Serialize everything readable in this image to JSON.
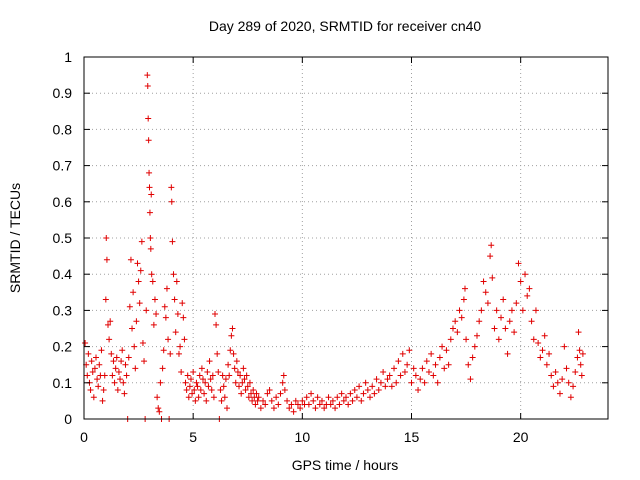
{
  "chart_data": {
    "type": "scatter",
    "title": "Day 289 of 2020, SRMTID for receiver cn40",
    "xlabel": "GPS time / hours",
    "ylabel": "SRMTID / TECUs",
    "xlim": [
      0,
      24
    ],
    "ylim": [
      0,
      1
    ],
    "grid": true,
    "x_ticks": [
      "0",
      "5",
      "10",
      "15",
      "20"
    ],
    "y_ticks": [
      "0",
      "0.1",
      "0.2",
      "0.3",
      "0.4",
      "0.5",
      "0.6",
      "0.7",
      "0.8",
      "0.9",
      "1"
    ],
    "marker": "+",
    "series": [
      {
        "name": "SRMTID",
        "color": "#e00000",
        "points": [
          [
            0.05,
            0.21
          ],
          [
            0.1,
            0.15
          ],
          [
            0.15,
            0.12
          ],
          [
            0.2,
            0.18
          ],
          [
            0.25,
            0.1
          ],
          [
            0.3,
            0.08
          ],
          [
            0.35,
            0.16
          ],
          [
            0.4,
            0.13
          ],
          [
            0.45,
            0.06
          ],
          [
            0.5,
            0.14
          ],
          [
            0.55,
            0.17
          ],
          [
            0.6,
            0.11
          ],
          [
            0.65,
            0.09
          ],
          [
            0.7,
            0.15
          ],
          [
            0.75,
            0.12
          ],
          [
            0.8,
            0.19
          ],
          [
            0.85,
            0.05
          ],
          [
            0.9,
            0.08
          ],
          [
            0.95,
            0.12
          ],
          [
            1.0,
            0.33
          ],
          [
            1.02,
            0.5
          ],
          [
            1.05,
            0.44
          ],
          [
            1.1,
            0.26
          ],
          [
            1.15,
            0.22
          ],
          [
            1.2,
            0.27
          ],
          [
            1.25,
            0.18
          ],
          [
            1.3,
            0.12
          ],
          [
            1.35,
            0.16
          ],
          [
            1.4,
            0.1
          ],
          [
            1.45,
            0.14
          ],
          [
            1.5,
            0.17
          ],
          [
            1.55,
            0.08
          ],
          [
            1.6,
            0.13
          ],
          [
            1.65,
            0.11
          ],
          [
            1.7,
            0.16
          ],
          [
            1.75,
            0.19
          ],
          [
            1.8,
            0.1
          ],
          [
            1.85,
            0.07
          ],
          [
            1.9,
            0.15
          ],
          [
            1.95,
            0.12
          ],
          [
            2.0,
            0.0
          ],
          [
            2.05,
            0.17
          ],
          [
            2.1,
            0.31
          ],
          [
            2.15,
            0.44
          ],
          [
            2.2,
            0.25
          ],
          [
            2.25,
            0.35
          ],
          [
            2.3,
            0.2
          ],
          [
            2.35,
            0.14
          ],
          [
            2.4,
            0.27
          ],
          [
            2.45,
            0.43
          ],
          [
            2.5,
            0.38
          ],
          [
            2.55,
            0.32
          ],
          [
            2.6,
            0.41
          ],
          [
            2.65,
            0.49
          ],
          [
            2.7,
            0.21
          ],
          [
            2.75,
            0.16
          ],
          [
            2.8,
            0.0
          ],
          [
            2.85,
            0.3
          ],
          [
            2.9,
            0.95
          ],
          [
            2.92,
            0.92
          ],
          [
            2.94,
            0.83
          ],
          [
            2.96,
            0.77
          ],
          [
            2.98,
            0.68
          ],
          [
            3.0,
            0.64
          ],
          [
            3.02,
            0.57
          ],
          [
            3.04,
            0.5
          ],
          [
            3.06,
            0.47
          ],
          [
            3.08,
            0.62
          ],
          [
            3.1,
            0.4
          ],
          [
            3.15,
            0.38
          ],
          [
            3.2,
            0.26
          ],
          [
            3.25,
            0.33
          ],
          [
            3.3,
            0.29
          ],
          [
            3.35,
            0.06
          ],
          [
            3.4,
            0.03
          ],
          [
            3.45,
            0.02
          ],
          [
            3.5,
            0.1
          ],
          [
            3.55,
            0.0
          ],
          [
            3.6,
            0.14
          ],
          [
            3.65,
            0.19
          ],
          [
            3.7,
            0.31
          ],
          [
            3.75,
            0.28
          ],
          [
            3.8,
            0.36
          ],
          [
            3.85,
            0.22
          ],
          [
            3.9,
            0.0
          ],
          [
            3.95,
            0.18
          ],
          [
            4.0,
            0.64
          ],
          [
            4.02,
            0.6
          ],
          [
            4.05,
            0.49
          ],
          [
            4.1,
            0.4
          ],
          [
            4.15,
            0.33
          ],
          [
            4.2,
            0.24
          ],
          [
            4.25,
            0.38
          ],
          [
            4.3,
            0.29
          ],
          [
            4.35,
            0.18
          ],
          [
            4.4,
            0.2
          ],
          [
            4.45,
            0.13
          ],
          [
            4.5,
            0.32
          ],
          [
            4.55,
            0.28
          ],
          [
            4.6,
            0.22
          ],
          [
            4.65,
            0.1
          ],
          [
            4.7,
            0.08
          ],
          [
            4.75,
            0.12
          ],
          [
            4.8,
            0.06
          ],
          [
            4.85,
            0.09
          ],
          [
            4.9,
            0.11
          ],
          [
            4.95,
            0.07
          ],
          [
            5.0,
            0.13
          ],
          [
            5.05,
            0.08
          ],
          [
            5.1,
            0.05
          ],
          [
            5.15,
            0.1
          ],
          [
            5.2,
            0.09
          ],
          [
            5.25,
            0.06
          ],
          [
            5.3,
            0.12
          ],
          [
            5.35,
            0.08
          ],
          [
            5.4,
            0.14
          ],
          [
            5.45,
            0.11
          ],
          [
            5.5,
            0.07
          ],
          [
            5.55,
            0.1
          ],
          [
            5.6,
            0.05
          ],
          [
            5.65,
            0.13
          ],
          [
            5.7,
            0.09
          ],
          [
            5.75,
            0.16
          ],
          [
            5.8,
            0.11
          ],
          [
            5.85,
            0.08
          ],
          [
            5.9,
            0.12
          ],
          [
            5.95,
            0.06
          ],
          [
            6.0,
            0.29
          ],
          [
            6.05,
            0.26
          ],
          [
            6.1,
            0.18
          ],
          [
            6.15,
            0.13
          ],
          [
            6.2,
            0.0
          ],
          [
            6.25,
            0.08
          ],
          [
            6.3,
            0.05
          ],
          [
            6.35,
            0.12
          ],
          [
            6.4,
            0.09
          ],
          [
            6.45,
            0.06
          ],
          [
            6.5,
            0.11
          ],
          [
            6.55,
            0.03
          ],
          [
            6.6,
            0.15
          ],
          [
            6.65,
            0.12
          ],
          [
            6.7,
            0.19
          ],
          [
            6.75,
            0.23
          ],
          [
            6.8,
            0.25
          ],
          [
            6.85,
            0.18
          ],
          [
            6.9,
            0.14
          ],
          [
            6.95,
            0.1
          ],
          [
            7.0,
            0.16
          ],
          [
            7.05,
            0.13
          ],
          [
            7.1,
            0.09
          ],
          [
            7.15,
            0.12
          ],
          [
            7.2,
            0.07
          ],
          [
            7.25,
            0.1
          ],
          [
            7.3,
            0.14
          ],
          [
            7.35,
            0.11
          ],
          [
            7.4,
            0.08
          ],
          [
            7.45,
            0.12
          ],
          [
            7.5,
            0.09
          ],
          [
            7.55,
            0.06
          ],
          [
            7.6,
            0.1
          ],
          [
            7.65,
            0.07
          ],
          [
            7.7,
            0.05
          ],
          [
            7.75,
            0.08
          ],
          [
            7.8,
            0.06
          ],
          [
            7.85,
            0.04
          ],
          [
            7.9,
            0.07
          ],
          [
            7.95,
            0.05
          ],
          [
            8.0,
            0.06
          ],
          [
            8.1,
            0.03
          ],
          [
            8.2,
            0.05
          ],
          [
            8.3,
            0.04
          ],
          [
            8.4,
            0.07
          ],
          [
            8.5,
            0.08
          ],
          [
            8.6,
            0.05
          ],
          [
            8.7,
            0.03
          ],
          [
            8.8,
            0.06
          ],
          [
            8.9,
            0.04
          ],
          [
            9.0,
            0.07
          ],
          [
            9.1,
            0.1
          ],
          [
            9.15,
            0.12
          ],
          [
            9.2,
            0.08
          ],
          [
            9.3,
            0.05
          ],
          [
            9.4,
            0.03
          ],
          [
            9.5,
            0.04
          ],
          [
            9.6,
            0.02
          ],
          [
            9.7,
            0.05
          ],
          [
            9.8,
            0.04
          ],
          [
            9.9,
            0.03
          ],
          [
            10.0,
            0.05
          ],
          [
            10.1,
            0.04
          ],
          [
            10.2,
            0.06
          ],
          [
            10.3,
            0.04
          ],
          [
            10.4,
            0.07
          ],
          [
            10.5,
            0.05
          ],
          [
            10.6,
            0.03
          ],
          [
            10.7,
            0.06
          ],
          [
            10.8,
            0.04
          ],
          [
            10.9,
            0.05
          ],
          [
            11.0,
            0.03
          ],
          [
            11.1,
            0.04
          ],
          [
            11.2,
            0.06
          ],
          [
            11.3,
            0.04
          ],
          [
            11.4,
            0.05
          ],
          [
            11.5,
            0.03
          ],
          [
            11.6,
            0.06
          ],
          [
            11.7,
            0.04
          ],
          [
            11.8,
            0.07
          ],
          [
            11.9,
            0.05
          ],
          [
            12.0,
            0.06
          ],
          [
            12.1,
            0.04
          ],
          [
            12.2,
            0.07
          ],
          [
            12.3,
            0.05
          ],
          [
            12.4,
            0.08
          ],
          [
            12.5,
            0.06
          ],
          [
            12.6,
            0.09
          ],
          [
            12.7,
            0.05
          ],
          [
            12.8,
            0.07
          ],
          [
            12.9,
            0.1
          ],
          [
            13.0,
            0.08
          ],
          [
            13.1,
            0.06
          ],
          [
            13.2,
            0.09
          ],
          [
            13.3,
            0.07
          ],
          [
            13.4,
            0.11
          ],
          [
            13.5,
            0.08
          ],
          [
            13.6,
            0.1
          ],
          [
            13.7,
            0.13
          ],
          [
            13.8,
            0.09
          ],
          [
            13.9,
            0.11
          ],
          [
            14.0,
            0.12
          ],
          [
            14.1,
            0.09
          ],
          [
            14.2,
            0.14
          ],
          [
            14.3,
            0.1
          ],
          [
            14.4,
            0.16
          ],
          [
            14.5,
            0.12
          ],
          [
            14.6,
            0.18
          ],
          [
            14.7,
            0.13
          ],
          [
            14.8,
            0.15
          ],
          [
            14.9,
            0.19
          ],
          [
            15.0,
            0.1
          ],
          [
            15.1,
            0.14
          ],
          [
            15.2,
            0.12
          ],
          [
            15.3,
            0.08
          ],
          [
            15.4,
            0.11
          ],
          [
            15.5,
            0.14
          ],
          [
            15.6,
            0.1
          ],
          [
            15.7,
            0.16
          ],
          [
            15.8,
            0.13
          ],
          [
            15.9,
            0.18
          ],
          [
            16.0,
            0.12
          ],
          [
            16.1,
            0.15
          ],
          [
            16.2,
            0.1
          ],
          [
            16.3,
            0.17
          ],
          [
            16.4,
            0.2
          ],
          [
            16.5,
            0.14
          ],
          [
            16.6,
            0.19
          ],
          [
            16.7,
            0.15
          ],
          [
            16.8,
            0.22
          ],
          [
            16.9,
            0.25
          ],
          [
            17.0,
            0.27
          ],
          [
            17.1,
            0.24
          ],
          [
            17.2,
            0.3
          ],
          [
            17.3,
            0.28
          ],
          [
            17.4,
            0.33
          ],
          [
            17.45,
            0.36
          ],
          [
            17.5,
            0.22
          ],
          [
            17.6,
            0.15
          ],
          [
            17.7,
            0.11
          ],
          [
            17.8,
            0.17
          ],
          [
            17.9,
            0.2
          ],
          [
            18.0,
            0.23
          ],
          [
            18.1,
            0.27
          ],
          [
            18.2,
            0.3
          ],
          [
            18.3,
            0.38
          ],
          [
            18.4,
            0.35
          ],
          [
            18.5,
            0.32
          ],
          [
            18.6,
            0.45
          ],
          [
            18.65,
            0.48
          ],
          [
            18.7,
            0.39
          ],
          [
            18.8,
            0.25
          ],
          [
            18.9,
            0.3
          ],
          [
            19.0,
            0.22
          ],
          [
            19.1,
            0.28
          ],
          [
            19.2,
            0.33
          ],
          [
            19.3,
            0.25
          ],
          [
            19.4,
            0.18
          ],
          [
            19.5,
            0.27
          ],
          [
            19.6,
            0.3
          ],
          [
            19.7,
            0.24
          ],
          [
            19.8,
            0.32
          ],
          [
            19.9,
            0.43
          ],
          [
            20.0,
            0.38
          ],
          [
            20.1,
            0.3
          ],
          [
            20.2,
            0.4
          ],
          [
            20.3,
            0.34
          ],
          [
            20.4,
            0.36
          ],
          [
            20.5,
            0.27
          ],
          [
            20.6,
            0.22
          ],
          [
            20.7,
            0.3
          ],
          [
            20.8,
            0.21
          ],
          [
            20.9,
            0.17
          ],
          [
            21.0,
            0.19
          ],
          [
            21.1,
            0.23
          ],
          [
            21.2,
            0.15
          ],
          [
            21.3,
            0.18
          ],
          [
            21.4,
            0.12
          ],
          [
            21.5,
            0.09
          ],
          [
            21.6,
            0.13
          ],
          [
            21.7,
            0.1
          ],
          [
            21.8,
            0.07
          ],
          [
            21.9,
            0.11
          ],
          [
            22.0,
            0.2
          ],
          [
            22.1,
            0.14
          ],
          [
            22.2,
            0.1
          ],
          [
            22.3,
            0.06
          ],
          [
            22.4,
            0.09
          ],
          [
            22.5,
            0.13
          ],
          [
            22.6,
            0.17
          ],
          [
            22.65,
            0.24
          ],
          [
            22.7,
            0.19
          ],
          [
            22.75,
            0.15
          ],
          [
            22.8,
            0.12
          ],
          [
            22.85,
            0.18
          ]
        ]
      }
    ]
  }
}
